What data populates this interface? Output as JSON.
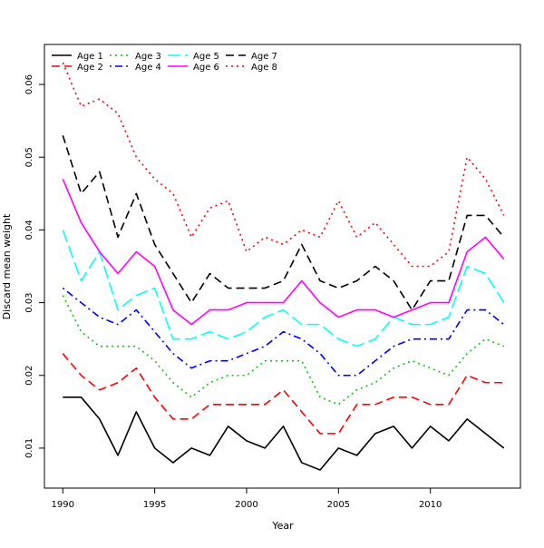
{
  "chart_data": {
    "type": "line",
    "xlabel": "Year",
    "ylabel": "Discard mean weight",
    "xlim": [
      1989,
      2014.9
    ],
    "ylim": [
      0.0045,
      0.0655
    ],
    "x_ticks": [
      1990,
      1995,
      2000,
      2005,
      2010
    ],
    "y_ticks": [
      0.01,
      0.02,
      0.03,
      0.04,
      0.05,
      0.06
    ],
    "grid": false,
    "legend_position": "top-left",
    "x": [
      1990,
      1991,
      1992,
      1993,
      1994,
      1995,
      1996,
      1997,
      1998,
      1999,
      2000,
      2001,
      2002,
      2003,
      2004,
      2005,
      2006,
      2007,
      2008,
      2009,
      2010,
      2011,
      2012,
      2013,
      2014
    ],
    "series": [
      {
        "name": "Age 1",
        "color": "#000000",
        "dash": "solid",
        "values": [
          0.017,
          0.017,
          0.014,
          0.009,
          0.015,
          0.01,
          0.008,
          0.01,
          0.009,
          0.013,
          0.011,
          0.01,
          0.013,
          0.008,
          0.007,
          0.01,
          0.009,
          0.012,
          0.013,
          0.01,
          0.013,
          0.011,
          0.014,
          0.012,
          0.01
        ]
      },
      {
        "name": "Age 2",
        "color": "#ff0000",
        "dash": "dashed",
        "values": [
          0.023,
          0.02,
          0.018,
          0.019,
          0.021,
          0.017,
          0.014,
          0.014,
          0.016,
          0.016,
          0.016,
          0.016,
          0.018,
          0.015,
          0.012,
          0.012,
          0.016,
          0.016,
          0.017,
          0.017,
          0.016,
          0.016,
          0.02,
          0.019,
          0.019
        ]
      },
      {
        "name": "Age 3",
        "color": "#00cd00",
        "dash": "dotted",
        "values": [
          0.031,
          0.026,
          0.024,
          0.024,
          0.024,
          0.022,
          0.019,
          0.017,
          0.019,
          0.02,
          0.02,
          0.022,
          0.022,
          0.022,
          0.017,
          0.016,
          0.018,
          0.019,
          0.021,
          0.022,
          0.021,
          0.02,
          0.023,
          0.025,
          0.024
        ]
      },
      {
        "name": "Age 4",
        "color": "#0000ff",
        "dash": "dotdash",
        "values": [
          0.032,
          0.03,
          0.028,
          0.027,
          0.029,
          0.026,
          0.023,
          0.021,
          0.022,
          0.022,
          0.023,
          0.024,
          0.026,
          0.025,
          0.023,
          0.02,
          0.02,
          0.022,
          0.024,
          0.025,
          0.025,
          0.025,
          0.029,
          0.029,
          0.027
        ]
      },
      {
        "name": "Age 5",
        "color": "#00ffff",
        "dash": "longdash",
        "values": [
          0.04,
          0.033,
          0.037,
          0.029,
          0.031,
          0.032,
          0.025,
          0.025,
          0.026,
          0.025,
          0.026,
          0.028,
          0.029,
          0.027,
          0.027,
          0.025,
          0.024,
          0.025,
          0.028,
          0.027,
          0.027,
          0.028,
          0.035,
          0.034,
          0.03
        ]
      },
      {
        "name": "Age 6",
        "color": "#ff00ff",
        "dash": "solid",
        "values": [
          0.047,
          0.041,
          0.037,
          0.034,
          0.037,
          0.035,
          0.029,
          0.027,
          0.029,
          0.029,
          0.03,
          0.03,
          0.03,
          0.033,
          0.03,
          0.028,
          0.029,
          0.029,
          0.028,
          0.029,
          0.03,
          0.03,
          0.037,
          0.039,
          0.036
        ]
      },
      {
        "name": "Age 7",
        "color": "#000000",
        "dash": "dashed",
        "values": [
          0.053,
          0.045,
          0.048,
          0.039,
          0.045,
          0.038,
          0.034,
          0.03,
          0.034,
          0.032,
          0.032,
          0.032,
          0.033,
          0.038,
          0.033,
          0.032,
          0.033,
          0.035,
          0.033,
          0.029,
          0.033,
          0.033,
          0.042,
          0.042,
          0.039
        ]
      },
      {
        "name": "Age 8",
        "color": "#ff0000",
        "dash": "dotted",
        "values": [
          0.063,
          0.057,
          0.058,
          0.056,
          0.05,
          0.047,
          0.045,
          0.039,
          0.043,
          0.044,
          0.037,
          0.039,
          0.038,
          0.04,
          0.039,
          0.044,
          0.039,
          0.041,
          0.038,
          0.035,
          0.035,
          0.037,
          0.05,
          0.047,
          0.042
        ]
      }
    ]
  }
}
